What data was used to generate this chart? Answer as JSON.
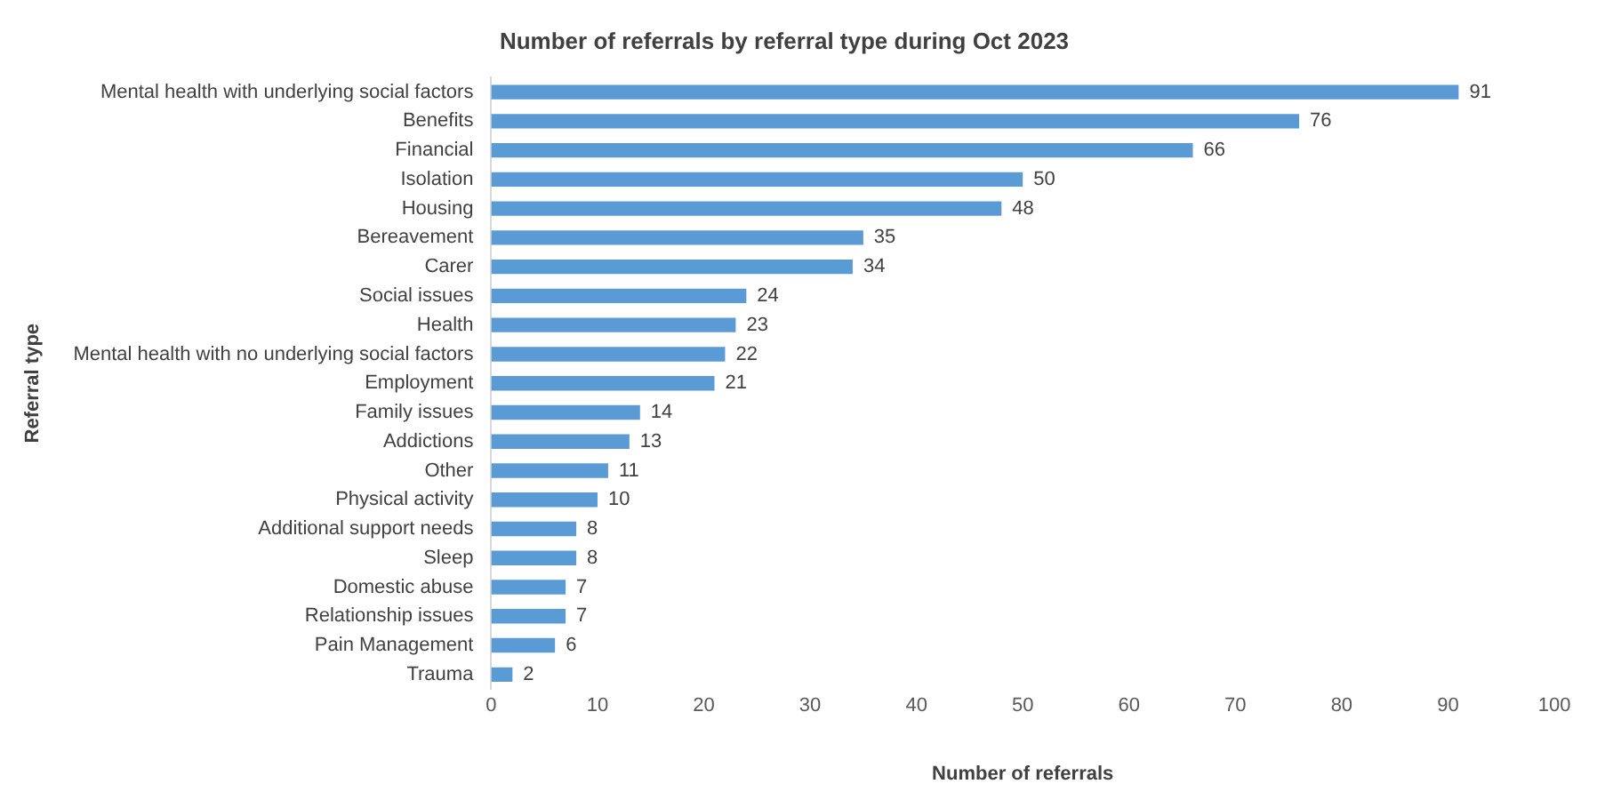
{
  "chart_data": {
    "type": "bar",
    "orientation": "horizontal",
    "title": "Number of referrals by referral type during Oct 2023",
    "xlabel": "Number of referrals",
    "ylabel": "Referral type",
    "categories": [
      "Mental health with underlying social factors",
      "Benefits",
      "Financial",
      "Isolation",
      "Housing",
      "Bereavement",
      "Carer",
      "Social issues",
      "Health",
      "Mental health with no underlying social factors",
      "Employment",
      "Family issues",
      "Addictions",
      "Other",
      "Physical activity",
      "Additional support needs",
      "Sleep",
      "Domestic abuse",
      "Relationship issues",
      "Pain Management",
      "Trauma"
    ],
    "values": [
      91,
      76,
      66,
      50,
      48,
      35,
      34,
      24,
      23,
      22,
      21,
      14,
      13,
      11,
      10,
      8,
      8,
      7,
      7,
      6,
      2
    ],
    "color": "#5b9bd5",
    "xlim": [
      0,
      100
    ],
    "xticks": [
      0,
      10,
      20,
      30,
      40,
      50,
      60,
      70,
      80,
      90,
      100
    ],
    "data_labels": true,
    "grid": false,
    "legend": false
  }
}
